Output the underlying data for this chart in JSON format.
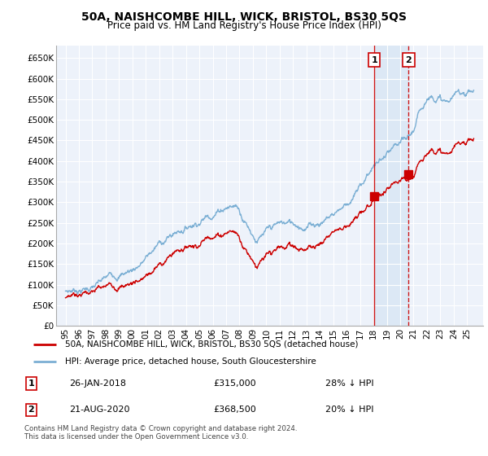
{
  "title": "50A, NAISHCOMBE HILL, WICK, BRISTOL, BS30 5QS",
  "subtitle": "Price paid vs. HM Land Registry's House Price Index (HPI)",
  "ylim": [
    0,
    680000
  ],
  "sale1_date": "26-JAN-2018",
  "sale1_price": 315000,
  "sale1_label": "28% ↓ HPI",
  "sale1_x": 2018.07,
  "sale2_date": "21-AUG-2020",
  "sale2_price": 368500,
  "sale2_label": "20% ↓ HPI",
  "sale2_x": 2020.64,
  "legend1": "50A, NAISHCOMBE HILL, WICK, BRISTOL, BS30 5QS (detached house)",
  "legend2": "HPI: Average price, detached house, South Gloucestershire",
  "footer": "Contains HM Land Registry data © Crown copyright and database right 2024.\nThis data is licensed under the Open Government Licence v3.0.",
  "sale_line_color": "#cc0000",
  "hpi_line_color": "#7bafd4",
  "property_line_color": "#cc0000",
  "shade_color": "#dce8f5",
  "plot_bg_color": "#edf2fa",
  "grid_color": "#ffffff"
}
